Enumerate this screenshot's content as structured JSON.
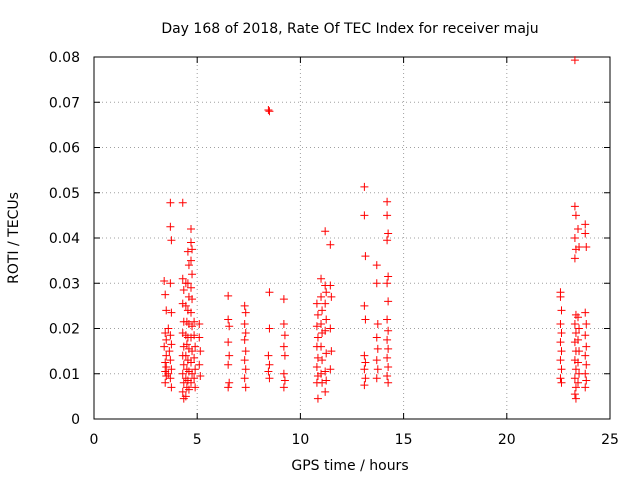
{
  "chart_data": {
    "type": "scatter",
    "title": "Day 168 of 2018, Rate Of TEC Index for receiver maju",
    "xlabel": "GPS time / hours",
    "ylabel": "ROTI / TECUs",
    "xlim": [
      0,
      25
    ],
    "ylim": [
      0,
      0.08
    ],
    "xticks": [
      0,
      5,
      10,
      15,
      20,
      25
    ],
    "xtick_labels": [
      "0",
      "5",
      "10",
      "15",
      "20",
      "25"
    ],
    "yticks": [
      0,
      0.01,
      0.02,
      0.03,
      0.04,
      0.05,
      0.06,
      0.07,
      0.08
    ],
    "ytick_labels": [
      "0",
      "0.01",
      "0.02",
      "0.03",
      "0.04",
      "0.05",
      "0.06",
      "0.07",
      "0.08"
    ],
    "grid": true,
    "marker": "plus",
    "color": "#ff0000",
    "series": [
      {
        "name": "ROTI",
        "points": [
          [
            3.4,
            0.0305
          ],
          [
            3.45,
            0.0275
          ],
          [
            3.5,
            0.024
          ],
          [
            3.45,
            0.019
          ],
          [
            3.5,
            0.0175
          ],
          [
            3.4,
            0.016
          ],
          [
            3.5,
            0.014
          ],
          [
            3.45,
            0.0125
          ],
          [
            3.5,
            0.0115
          ],
          [
            3.45,
            0.0105
          ],
          [
            3.5,
            0.0095
          ],
          [
            3.45,
            0.008
          ],
          [
            3.6,
            0.02
          ],
          [
            3.65,
            0.015
          ],
          [
            3.6,
            0.01
          ],
          [
            3.7,
            0.0478
          ],
          [
            3.7,
            0.0425
          ],
          [
            3.75,
            0.0395
          ],
          [
            3.7,
            0.03
          ],
          [
            3.75,
            0.0235
          ],
          [
            3.7,
            0.0185
          ],
          [
            3.75,
            0.0165
          ],
          [
            3.7,
            0.013
          ],
          [
            3.75,
            0.011
          ],
          [
            3.7,
            0.009
          ],
          [
            3.75,
            0.007
          ],
          [
            4.3,
            0.0478
          ],
          [
            4.3,
            0.031
          ],
          [
            4.35,
            0.0285
          ],
          [
            4.3,
            0.0255
          ],
          [
            4.35,
            0.0215
          ],
          [
            4.3,
            0.019
          ],
          [
            4.35,
            0.016
          ],
          [
            4.3,
            0.014
          ],
          [
            4.35,
            0.012
          ],
          [
            4.3,
            0.01
          ],
          [
            4.35,
            0.008
          ],
          [
            4.3,
            0.006
          ],
          [
            4.35,
            0.0045
          ],
          [
            4.45,
            0.03
          ],
          [
            4.45,
            0.025
          ],
          [
            4.5,
            0.0215
          ],
          [
            4.45,
            0.0185
          ],
          [
            4.5,
            0.0165
          ],
          [
            4.45,
            0.014
          ],
          [
            4.5,
            0.011
          ],
          [
            4.45,
            0.009
          ],
          [
            4.5,
            0.007
          ],
          [
            4.45,
            0.005
          ],
          [
            4.55,
            0.037
          ],
          [
            4.6,
            0.034
          ],
          [
            4.55,
            0.03
          ],
          [
            4.6,
            0.027
          ],
          [
            4.55,
            0.024
          ],
          [
            4.6,
            0.021
          ],
          [
            4.55,
            0.018
          ],
          [
            4.6,
            0.0155
          ],
          [
            4.55,
            0.013
          ],
          [
            4.6,
            0.0105
          ],
          [
            4.55,
            0.0085
          ],
          [
            4.6,
            0.0065
          ],
          [
            4.7,
            0.042
          ],
          [
            4.7,
            0.039
          ],
          [
            4.75,
            0.0375
          ],
          [
            4.7,
            0.035
          ],
          [
            4.75,
            0.032
          ],
          [
            4.7,
            0.029
          ],
          [
            4.75,
            0.0265
          ],
          [
            4.7,
            0.0235
          ],
          [
            4.75,
            0.0205
          ],
          [
            4.7,
            0.018
          ],
          [
            4.75,
            0.015
          ],
          [
            4.7,
            0.0125
          ],
          [
            4.75,
            0.01
          ],
          [
            4.7,
            0.008
          ],
          [
            4.85,
            0.0215
          ],
          [
            4.85,
            0.0185
          ],
          [
            4.9,
            0.016
          ],
          [
            4.85,
            0.0135
          ],
          [
            4.9,
            0.011
          ],
          [
            4.85,
            0.009
          ],
          [
            4.9,
            0.007
          ],
          [
            5.1,
            0.021
          ],
          [
            5.1,
            0.018
          ],
          [
            5.15,
            0.015
          ],
          [
            5.1,
            0.012
          ],
          [
            5.15,
            0.0095
          ],
          [
            6.5,
            0.0272
          ],
          [
            6.5,
            0.022
          ],
          [
            6.55,
            0.0205
          ],
          [
            6.5,
            0.017
          ],
          [
            6.55,
            0.014
          ],
          [
            6.5,
            0.012
          ],
          [
            6.55,
            0.008
          ],
          [
            6.5,
            0.007
          ],
          [
            7.3,
            0.025
          ],
          [
            7.35,
            0.0235
          ],
          [
            7.3,
            0.021
          ],
          [
            7.35,
            0.019
          ],
          [
            7.3,
            0.0175
          ],
          [
            7.35,
            0.015
          ],
          [
            7.3,
            0.013
          ],
          [
            7.35,
            0.011
          ],
          [
            7.3,
            0.009
          ],
          [
            7.35,
            0.007
          ],
          [
            8.45,
            0.0683
          ],
          [
            8.5,
            0.068
          ],
          [
            8.5,
            0.028
          ],
          [
            8.5,
            0.02
          ],
          [
            8.45,
            0.014
          ],
          [
            8.5,
            0.012
          ],
          [
            8.45,
            0.0105
          ],
          [
            8.5,
            0.009
          ],
          [
            9.2,
            0.0265
          ],
          [
            9.2,
            0.021
          ],
          [
            9.25,
            0.0185
          ],
          [
            9.2,
            0.016
          ],
          [
            9.25,
            0.014
          ],
          [
            9.2,
            0.01
          ],
          [
            9.25,
            0.0085
          ],
          [
            9.2,
            0.007
          ],
          [
            10.8,
            0.0255
          ],
          [
            10.85,
            0.023
          ],
          [
            10.8,
            0.0205
          ],
          [
            10.85,
            0.018
          ],
          [
            10.8,
            0.016
          ],
          [
            10.85,
            0.0135
          ],
          [
            10.8,
            0.0115
          ],
          [
            10.85,
            0.0095
          ],
          [
            10.8,
            0.008
          ],
          [
            10.85,
            0.0045
          ],
          [
            11.0,
            0.031
          ],
          [
            11.0,
            0.027
          ],
          [
            11.05,
            0.024
          ],
          [
            11.0,
            0.021
          ],
          [
            11.05,
            0.019
          ],
          [
            11.0,
            0.016
          ],
          [
            11.05,
            0.013
          ],
          [
            11.0,
            0.01
          ],
          [
            11.05,
            0.008
          ],
          [
            11.2,
            0.0415
          ],
          [
            11.2,
            0.0295
          ],
          [
            11.25,
            0.028
          ],
          [
            11.2,
            0.0255
          ],
          [
            11.25,
            0.022
          ],
          [
            11.2,
            0.0195
          ],
          [
            11.25,
            0.0145
          ],
          [
            11.2,
            0.0105
          ],
          [
            11.25,
            0.0085
          ],
          [
            11.2,
            0.006
          ],
          [
            11.45,
            0.0385
          ],
          [
            11.45,
            0.0295
          ],
          [
            11.5,
            0.027
          ],
          [
            11.45,
            0.02
          ],
          [
            11.5,
            0.015
          ],
          [
            11.45,
            0.011
          ],
          [
            13.1,
            0.0513
          ],
          [
            13.1,
            0.045
          ],
          [
            13.15,
            0.036
          ],
          [
            13.1,
            0.025
          ],
          [
            13.15,
            0.022
          ],
          [
            13.1,
            0.014
          ],
          [
            13.15,
            0.0125
          ],
          [
            13.1,
            0.011
          ],
          [
            13.15,
            0.009
          ],
          [
            13.1,
            0.0075
          ],
          [
            13.7,
            0.034
          ],
          [
            13.7,
            0.03
          ],
          [
            13.75,
            0.021
          ],
          [
            13.7,
            0.018
          ],
          [
            13.75,
            0.0155
          ],
          [
            13.7,
            0.013
          ],
          [
            13.75,
            0.011
          ],
          [
            13.7,
            0.009
          ],
          [
            14.2,
            0.048
          ],
          [
            14.2,
            0.045
          ],
          [
            14.25,
            0.041
          ],
          [
            14.2,
            0.0395
          ],
          [
            14.25,
            0.0315
          ],
          [
            14.2,
            0.03
          ],
          [
            14.25,
            0.026
          ],
          [
            14.2,
            0.022
          ],
          [
            14.25,
            0.0195
          ],
          [
            14.2,
            0.0175
          ],
          [
            14.25,
            0.0155
          ],
          [
            14.2,
            0.0135
          ],
          [
            14.25,
            0.0115
          ],
          [
            14.2,
            0.0095
          ],
          [
            14.25,
            0.008
          ],
          [
            22.6,
            0.028
          ],
          [
            22.6,
            0.027
          ],
          [
            22.65,
            0.024
          ],
          [
            22.6,
            0.021
          ],
          [
            22.65,
            0.019
          ],
          [
            22.6,
            0.017
          ],
          [
            22.65,
            0.015
          ],
          [
            22.6,
            0.013
          ],
          [
            22.65,
            0.011
          ],
          [
            22.6,
            0.009
          ],
          [
            22.65,
            0.008
          ],
          [
            23.3,
            0.0793
          ],
          [
            23.3,
            0.047
          ],
          [
            23.35,
            0.045
          ],
          [
            23.3,
            0.04
          ],
          [
            23.35,
            0.0375
          ],
          [
            23.3,
            0.0355
          ],
          [
            23.35,
            0.023
          ],
          [
            23.3,
            0.021
          ],
          [
            23.35,
            0.019
          ],
          [
            23.3,
            0.017
          ],
          [
            23.35,
            0.015
          ],
          [
            23.3,
            0.013
          ],
          [
            23.35,
            0.011
          ],
          [
            23.3,
            0.009
          ],
          [
            23.35,
            0.007
          ],
          [
            23.3,
            0.0055
          ],
          [
            23.35,
            0.0045
          ],
          [
            23.45,
            0.042
          ],
          [
            23.5,
            0.038
          ],
          [
            23.45,
            0.0225
          ],
          [
            23.5,
            0.02
          ],
          [
            23.45,
            0.0175
          ],
          [
            23.5,
            0.015
          ],
          [
            23.45,
            0.0125
          ],
          [
            23.5,
            0.01
          ],
          [
            23.45,
            0.008
          ],
          [
            23.8,
            0.043
          ],
          [
            23.8,
            0.041
          ],
          [
            23.85,
            0.038
          ],
          [
            23.8,
            0.0235
          ],
          [
            23.85,
            0.021
          ],
          [
            23.8,
            0.0185
          ],
          [
            23.85,
            0.016
          ],
          [
            23.8,
            0.014
          ],
          [
            23.85,
            0.012
          ],
          [
            23.8,
            0.01
          ],
          [
            23.85,
            0.0085
          ],
          [
            23.8,
            0.007
          ]
        ]
      }
    ]
  }
}
